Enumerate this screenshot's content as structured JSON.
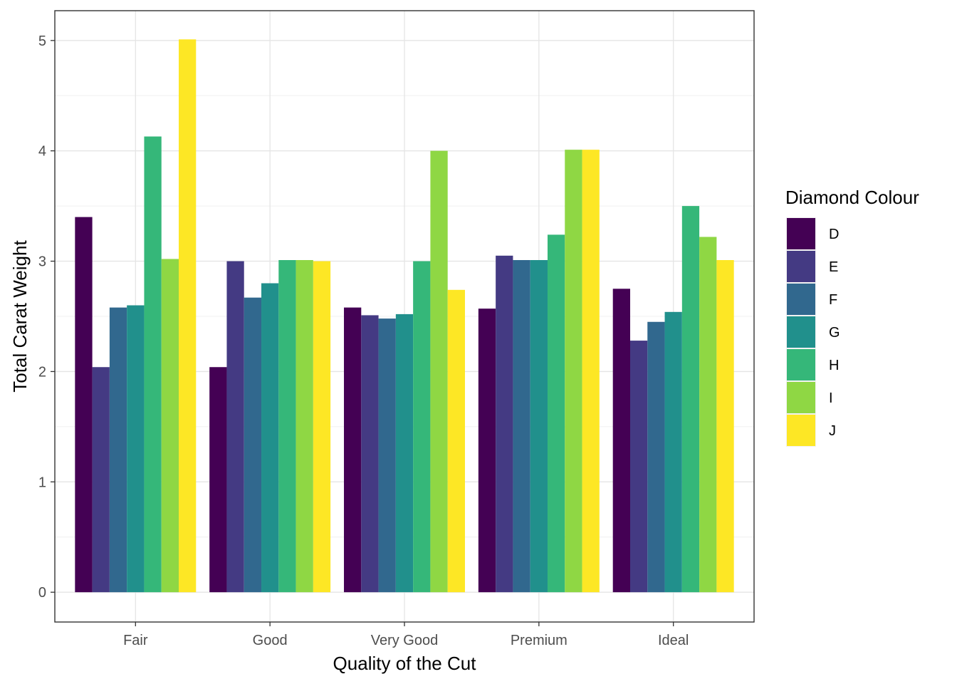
{
  "chart_data": {
    "type": "bar",
    "xlabel": "Quality of the Cut",
    "ylabel": "Total Carat Weight",
    "categories": [
      "Fair",
      "Good",
      "Very Good",
      "Premium",
      "Ideal"
    ],
    "ylim": [
      -0.27,
      5.27
    ],
    "yticks": [
      0,
      1,
      2,
      3,
      4,
      5
    ],
    "grid": true,
    "legend": {
      "title": "Diamond Colour",
      "placement": "right"
    },
    "series": [
      {
        "name": "D",
        "color": "#440154",
        "values": [
          3.4,
          2.04,
          2.58,
          2.57,
          2.75
        ]
      },
      {
        "name": "E",
        "color": "#443A83",
        "values": [
          2.04,
          3.0,
          2.51,
          3.05,
          2.28
        ]
      },
      {
        "name": "F",
        "color": "#31688E",
        "values": [
          2.58,
          2.67,
          2.48,
          3.01,
          2.45
        ]
      },
      {
        "name": "G",
        "color": "#21908C",
        "values": [
          2.6,
          2.8,
          2.52,
          3.01,
          2.54
        ]
      },
      {
        "name": "H",
        "color": "#35B779",
        "values": [
          4.13,
          3.01,
          3.0,
          3.24,
          3.5
        ]
      },
      {
        "name": "I",
        "color": "#8FD744",
        "values": [
          3.02,
          3.01,
          4.0,
          4.01,
          3.22
        ]
      },
      {
        "name": "J",
        "color": "#FDE725",
        "values": [
          5.01,
          3.0,
          2.74,
          4.01,
          3.01
        ]
      }
    ]
  }
}
